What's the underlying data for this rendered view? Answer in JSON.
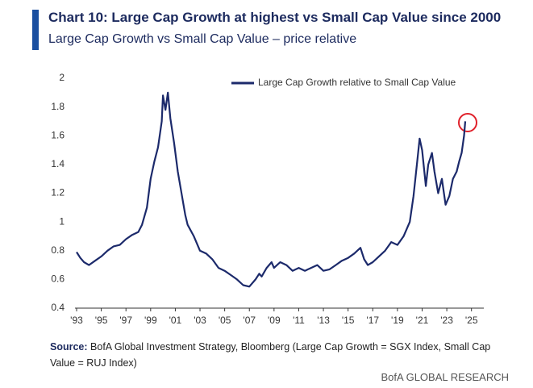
{
  "chart_data": {
    "type": "line",
    "title": "Chart 10: Large Cap Growth at highest vs Small Cap Value since 2000",
    "subtitle": "Large Cap Growth vs Small Cap Value – price relative",
    "source_label": "Source:",
    "source_text": "BofA Global Investment Strategy, Bloomberg (Large Cap Growth = SGX Index, Small Cap Value = RUJ Index)",
    "footer": "BofA GLOBAL RESEARCH",
    "x": [
      1993.0,
      1993.3,
      1993.6,
      1994.0,
      1994.5,
      1995.0,
      1995.5,
      1996.0,
      1996.5,
      1997.0,
      1997.5,
      1998.0,
      1998.3,
      1998.7,
      1999.0,
      1999.3,
      1999.6,
      1999.9,
      2000.0,
      2000.2,
      2000.4,
      2000.6,
      2000.9,
      2001.2,
      2001.5,
      2001.8,
      2002.0,
      2002.5,
      2003.0,
      2003.5,
      2004.0,
      2004.5,
      2005.0,
      2005.5,
      2006.0,
      2006.5,
      2007.0,
      2007.5,
      2007.8,
      2008.0,
      2008.4,
      2008.8,
      2009.0,
      2009.5,
      2010.0,
      2010.5,
      2011.0,
      2011.5,
      2012.0,
      2012.5,
      2013.0,
      2013.5,
      2014.0,
      2014.5,
      2015.0,
      2015.5,
      2016.0,
      2016.3,
      2016.6,
      2017.0,
      2017.5,
      2018.0,
      2018.5,
      2019.0,
      2019.5,
      2020.0,
      2020.3,
      2020.6,
      2020.8,
      2021.0,
      2021.3,
      2021.5,
      2021.8,
      2022.0,
      2022.3,
      2022.6,
      2022.9,
      2023.2,
      2023.5,
      2023.8,
      2024.0,
      2024.2,
      2024.4,
      2024.5
    ],
    "series": [
      {
        "name": "Large Cap Growth relative to Small Cap Value",
        "color": "#1c2a6b",
        "values": [
          0.79,
          0.75,
          0.72,
          0.7,
          0.73,
          0.76,
          0.8,
          0.83,
          0.84,
          0.88,
          0.91,
          0.93,
          0.98,
          1.1,
          1.3,
          1.42,
          1.52,
          1.7,
          1.88,
          1.78,
          1.9,
          1.72,
          1.55,
          1.35,
          1.2,
          1.05,
          0.98,
          0.9,
          0.8,
          0.78,
          0.74,
          0.68,
          0.66,
          0.63,
          0.6,
          0.56,
          0.55,
          0.6,
          0.64,
          0.62,
          0.68,
          0.72,
          0.68,
          0.72,
          0.7,
          0.66,
          0.68,
          0.66,
          0.68,
          0.7,
          0.66,
          0.67,
          0.7,
          0.73,
          0.75,
          0.78,
          0.82,
          0.74,
          0.7,
          0.72,
          0.76,
          0.8,
          0.86,
          0.84,
          0.9,
          1.0,
          1.18,
          1.42,
          1.58,
          1.5,
          1.25,
          1.4,
          1.48,
          1.35,
          1.2,
          1.3,
          1.12,
          1.18,
          1.3,
          1.35,
          1.42,
          1.48,
          1.6,
          1.7
        ]
      }
    ],
    "xlim": [
      1993,
      2026
    ],
    "xticks": [
      {
        "value": 1993,
        "label": "'93"
      },
      {
        "value": 1995,
        "label": "'95"
      },
      {
        "value": 1997,
        "label": "'97"
      },
      {
        "value": 1999,
        "label": "'99"
      },
      {
        "value": 2001,
        "label": "'01"
      },
      {
        "value": 2003,
        "label": "'03"
      },
      {
        "value": 2005,
        "label": "'05"
      },
      {
        "value": 2007,
        "label": "'07"
      },
      {
        "value": 2009,
        "label": "'09"
      },
      {
        "value": 2011,
        "label": "'11"
      },
      {
        "value": 2013,
        "label": "'13"
      },
      {
        "value": 2015,
        "label": "'15"
      },
      {
        "value": 2017,
        "label": "'17"
      },
      {
        "value": 2019,
        "label": "'19"
      },
      {
        "value": 2021,
        "label": "'21"
      },
      {
        "value": 2023,
        "label": "'23"
      },
      {
        "value": 2025,
        "label": "'25"
      }
    ],
    "ylim": [
      0.4,
      2
    ],
    "yticks": [
      0.4,
      0.6,
      0.8,
      1,
      1.2,
      1.4,
      1.6,
      1.8,
      2
    ],
    "grid": false
  }
}
